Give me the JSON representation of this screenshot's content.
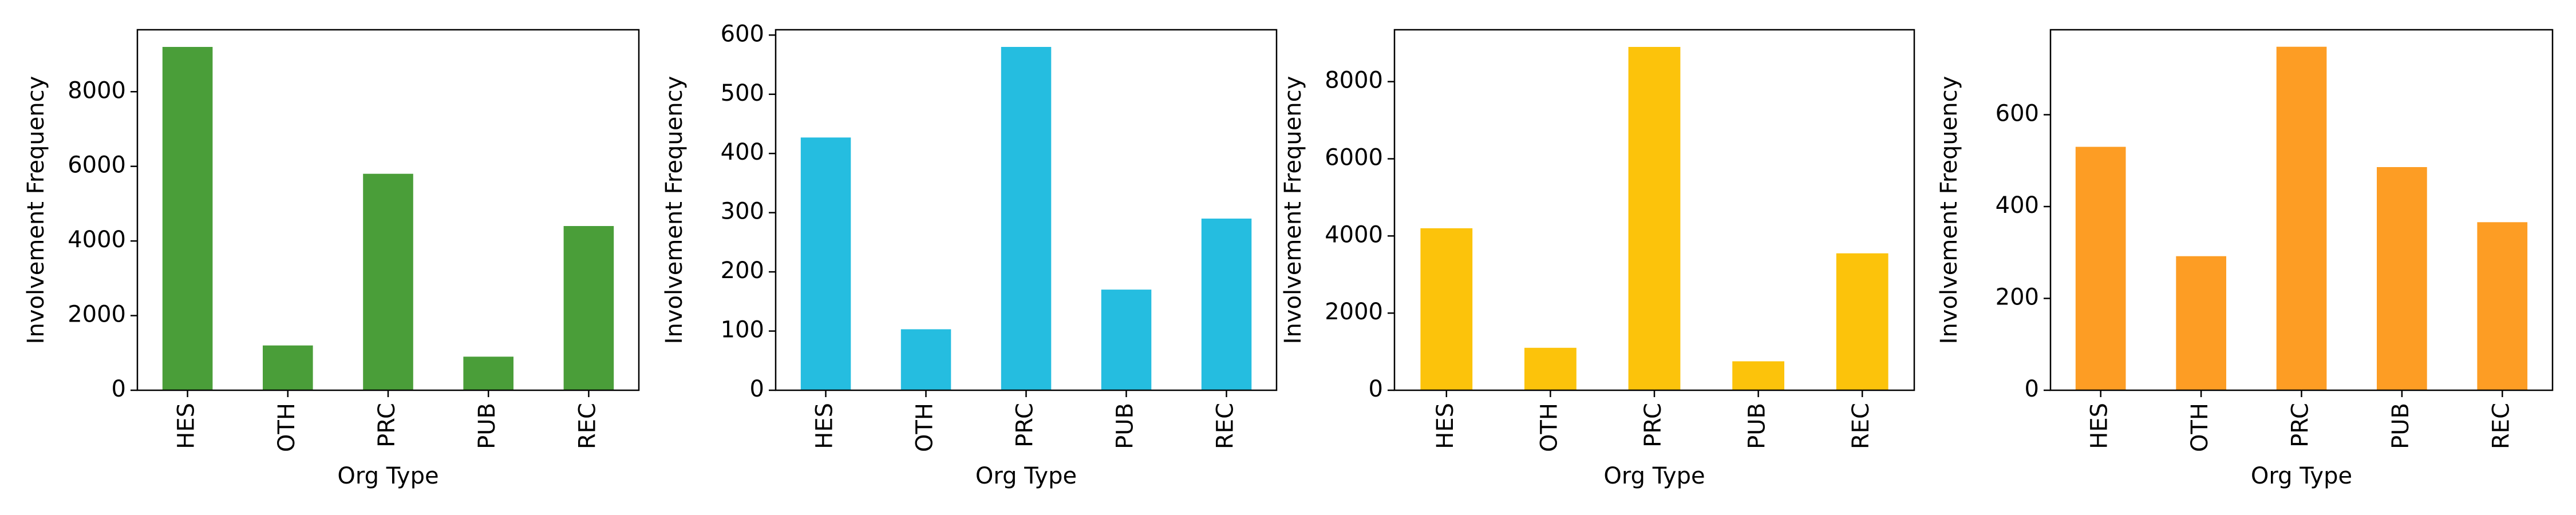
{
  "chart_data": [
    {
      "type": "bar",
      "categories": [
        "HES",
        "OTH",
        "PRC",
        "PUB",
        "REC"
      ],
      "values": [
        9200,
        1200,
        5800,
        900,
        4400
      ],
      "xlabel": "Org Type",
      "ylabel": "Involvement Frequency",
      "ylim": [
        0,
        9660
      ],
      "yticks": [
        0,
        2000,
        4000,
        6000,
        8000
      ],
      "color": "#4a9e39",
      "grid": false
    },
    {
      "type": "bar",
      "categories": [
        "HES",
        "OTH",
        "PRC",
        "PUB",
        "REC"
      ],
      "values": [
        427,
        103,
        580,
        170,
        290
      ],
      "xlabel": "Org Type",
      "ylabel": "Involvement Frequency",
      "ylim": [
        0,
        609
      ],
      "yticks": [
        0,
        100,
        200,
        300,
        400,
        500,
        600
      ],
      "color": "#25bde0",
      "grid": false
    },
    {
      "type": "bar",
      "categories": [
        "HES",
        "OTH",
        "PRC",
        "PUB",
        "REC"
      ],
      "values": [
        4200,
        1100,
        8900,
        750,
        3550
      ],
      "xlabel": "Org Type",
      "ylabel": "Involvement Frequency",
      "ylim": [
        0,
        9345
      ],
      "yticks": [
        0,
        2000,
        4000,
        6000,
        8000
      ],
      "color": "#fcc30b",
      "grid": false
    },
    {
      "type": "bar",
      "categories": [
        "HES",
        "OTH",
        "PRC",
        "PUB",
        "REC"
      ],
      "values": [
        530,
        292,
        748,
        486,
        366
      ],
      "xlabel": "Org Type",
      "ylabel": "Involvement Frequency",
      "ylim": [
        0,
        785
      ],
      "yticks": [
        0,
        200,
        400,
        600
      ],
      "color": "#fd9d24",
      "grid": false
    }
  ]
}
